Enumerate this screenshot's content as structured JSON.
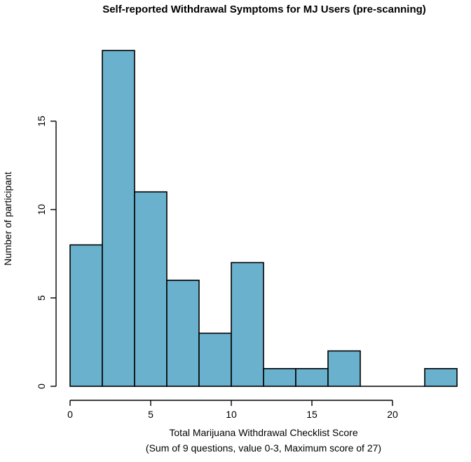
{
  "chart_data": {
    "type": "bar",
    "title": "Self-reported Withdrawal Symptoms for MJ Users (pre-scanning)",
    "xlabel": "Total Marijuana Withdrawal Checklist Score",
    "xlabel2": "(Sum of 9 questions, value 0-3, Maximum score of 27)",
    "ylabel": "Number of participant",
    "bins": [
      {
        "start": 0,
        "end": 2,
        "count": 8
      },
      {
        "start": 2,
        "end": 4,
        "count": 19
      },
      {
        "start": 4,
        "end": 6,
        "count": 11
      },
      {
        "start": 6,
        "end": 8,
        "count": 6
      },
      {
        "start": 8,
        "end": 10,
        "count": 3
      },
      {
        "start": 10,
        "end": 12,
        "count": 7
      },
      {
        "start": 12,
        "end": 14,
        "count": 1
      },
      {
        "start": 14,
        "end": 16,
        "count": 1
      },
      {
        "start": 16,
        "end": 18,
        "count": 2
      },
      {
        "start": 18,
        "end": 20,
        "count": 0
      },
      {
        "start": 20,
        "end": 22,
        "count": 0
      },
      {
        "start": 22,
        "end": 24,
        "count": 1
      }
    ],
    "xlim": [
      0,
      24
    ],
    "ylim": [
      0,
      19
    ],
    "xticks": [
      0,
      5,
      10,
      15,
      20
    ],
    "yticks": [
      0,
      5,
      10,
      15
    ],
    "bar_color": "#6ab1cd",
    "grid": false
  }
}
